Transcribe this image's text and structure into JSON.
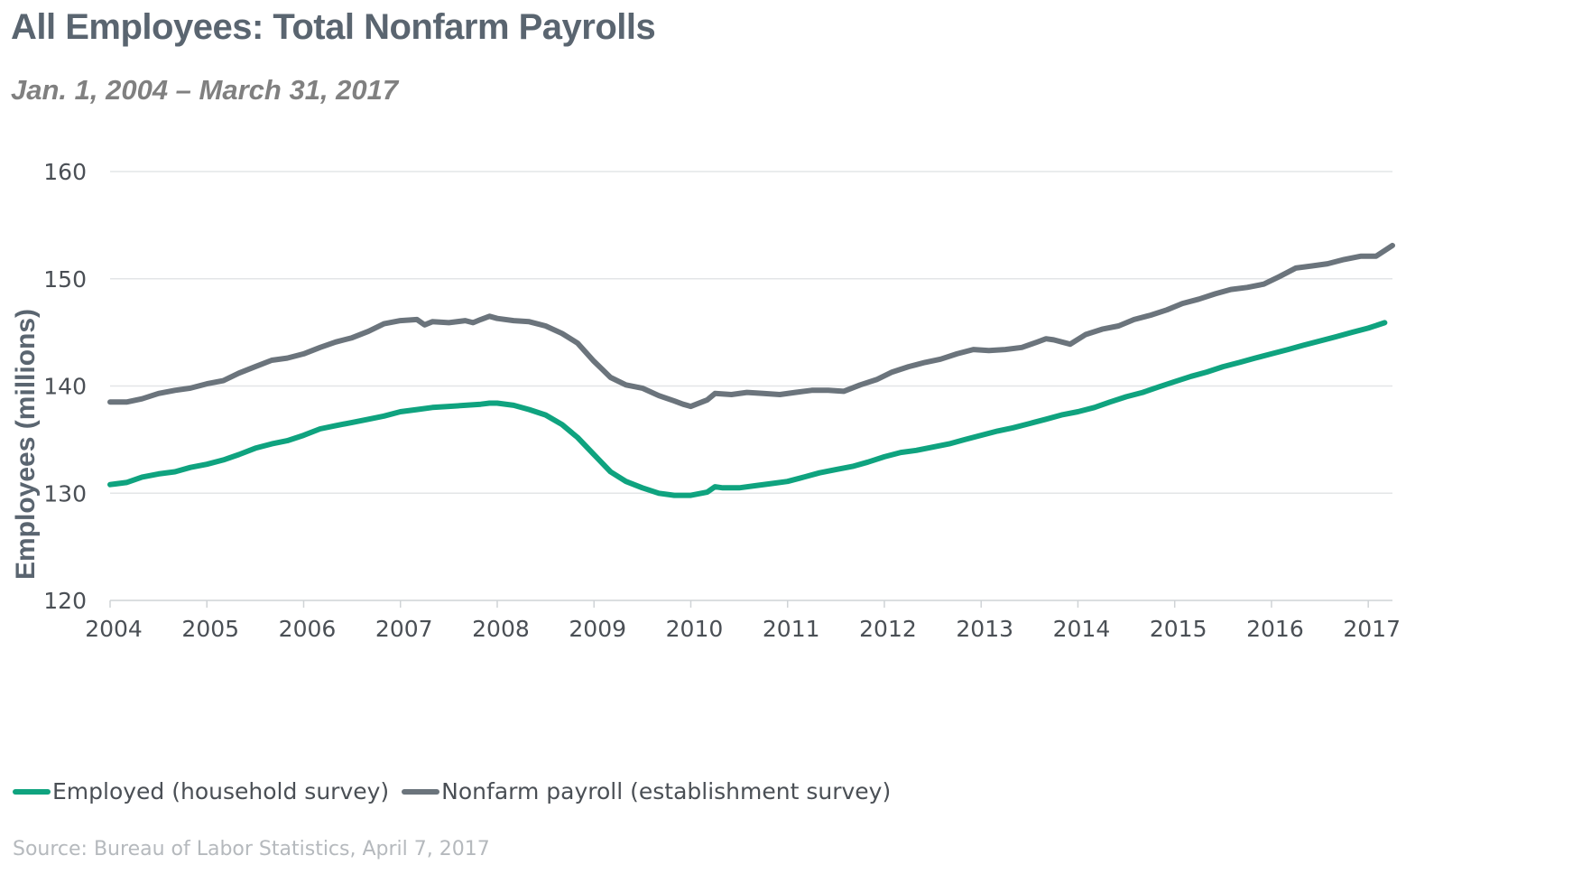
{
  "title": "All Employees: Total Nonfarm Payrolls",
  "subtitle": "Jan. 1, 2004 – March 31, 2017",
  "source": "Source: Bureau of Labor Statistics, April 7, 2017",
  "chart_data": {
    "type": "line",
    "ylabel": "Employees (millions)",
    "xlabel": "",
    "ylim": [
      120,
      160
    ],
    "yticks": [
      "120",
      "130",
      "140",
      "150",
      "160"
    ],
    "xlim": [
      2004.0,
      2017.25
    ],
    "xticks": [
      "2004",
      "2005",
      "2006",
      "2007",
      "2008",
      "2009",
      "2010",
      "2011",
      "2012",
      "2013",
      "2014",
      "2015",
      "2016",
      "2017"
    ],
    "grid": true,
    "legend_position": "bottom",
    "series": [
      {
        "name": "Employed (household survey)",
        "color": "#0fa37f",
        "x": [
          2004.0,
          2004.17,
          2004.33,
          2004.5,
          2004.67,
          2004.83,
          2005.0,
          2005.17,
          2005.33,
          2005.5,
          2005.67,
          2005.83,
          2006.0,
          2006.17,
          2006.33,
          2006.5,
          2006.67,
          2006.83,
          2007.0,
          2007.17,
          2007.33,
          2007.5,
          2007.67,
          2007.83,
          2007.92,
          2008.0,
          2008.17,
          2008.33,
          2008.5,
          2008.67,
          2008.83,
          2009.0,
          2009.17,
          2009.33,
          2009.5,
          2009.67,
          2009.83,
          2010.0,
          2010.17,
          2010.25,
          2010.33,
          2010.42,
          2010.5,
          2010.67,
          2010.83,
          2011.0,
          2011.17,
          2011.33,
          2011.5,
          2011.67,
          2011.83,
          2012.0,
          2012.17,
          2012.33,
          2012.5,
          2012.67,
          2012.83,
          2013.0,
          2013.17,
          2013.33,
          2013.5,
          2013.67,
          2013.83,
          2014.0,
          2014.17,
          2014.33,
          2014.5,
          2014.67,
          2014.83,
          2015.0,
          2015.17,
          2015.33,
          2015.5,
          2015.67,
          2015.83,
          2016.0,
          2016.17,
          2016.33,
          2016.5,
          2016.67,
          2016.83,
          2017.0,
          2017.17
        ],
        "values": [
          130.8,
          131.0,
          131.5,
          131.8,
          132.0,
          132.4,
          132.7,
          133.1,
          133.6,
          134.2,
          134.6,
          134.9,
          135.4,
          136.0,
          136.3,
          136.6,
          136.9,
          137.2,
          137.6,
          137.8,
          138.0,
          138.1,
          138.2,
          138.3,
          138.4,
          138.4,
          138.2,
          137.8,
          137.3,
          136.4,
          135.2,
          133.6,
          132.0,
          131.1,
          130.5,
          130.0,
          129.8,
          129.8,
          130.1,
          130.6,
          130.5,
          130.5,
          130.5,
          130.7,
          130.9,
          131.1,
          131.5,
          131.9,
          132.2,
          132.5,
          132.9,
          133.4,
          133.8,
          134.0,
          134.3,
          134.6,
          135.0,
          135.4,
          135.8,
          136.1,
          136.5,
          136.9,
          137.3,
          137.6,
          138.0,
          138.5,
          139.0,
          139.4,
          139.9,
          140.4,
          140.9,
          141.3,
          141.8,
          142.2,
          142.6,
          143.0,
          143.4,
          143.8,
          144.2,
          144.6,
          145.0,
          145.4,
          145.9
        ]
      },
      {
        "name": "Nonfarm payroll (establishment survey)",
        "color": "#6b747c",
        "x": [
          2004.0,
          2004.17,
          2004.33,
          2004.5,
          2004.67,
          2004.83,
          2005.0,
          2005.17,
          2005.33,
          2005.5,
          2005.67,
          2005.83,
          2006.0,
          2006.17,
          2006.33,
          2006.5,
          2006.67,
          2006.83,
          2007.0,
          2007.17,
          2007.25,
          2007.33,
          2007.5,
          2007.67,
          2007.75,
          2007.83,
          2007.92,
          2008.0,
          2008.17,
          2008.33,
          2008.5,
          2008.67,
          2008.83,
          2009.0,
          2009.08,
          2009.17,
          2009.33,
          2009.5,
          2009.67,
          2009.83,
          2009.92,
          2010.0,
          2010.17,
          2010.25,
          2010.42,
          2010.58,
          2010.75,
          2010.92,
          2011.08,
          2011.25,
          2011.42,
          2011.58,
          2011.75,
          2011.92,
          2012.08,
          2012.25,
          2012.42,
          2012.58,
          2012.75,
          2012.92,
          2013.08,
          2013.25,
          2013.42,
          2013.58,
          2013.67,
          2013.75,
          2013.92,
          2014.08,
          2014.25,
          2014.42,
          2014.58,
          2014.75,
          2014.92,
          2015.08,
          2015.25,
          2015.42,
          2015.58,
          2015.75,
          2015.92,
          2016.08,
          2016.25,
          2016.42,
          2016.58,
          2016.75,
          2016.92,
          2017.08,
          2017.25
        ],
        "values": [
          138.5,
          138.5,
          138.8,
          139.3,
          139.6,
          139.8,
          140.2,
          140.5,
          141.2,
          141.8,
          142.4,
          142.6,
          143.0,
          143.6,
          144.1,
          144.5,
          145.1,
          145.8,
          146.1,
          146.2,
          145.7,
          146.0,
          145.9,
          146.1,
          145.9,
          146.2,
          146.5,
          146.3,
          146.1,
          146.0,
          145.6,
          144.9,
          144.0,
          142.3,
          141.6,
          140.8,
          140.1,
          139.8,
          139.1,
          138.6,
          138.3,
          138.1,
          138.7,
          139.3,
          139.2,
          139.4,
          139.3,
          139.2,
          139.4,
          139.6,
          139.6,
          139.5,
          140.1,
          140.6,
          141.3,
          141.8,
          142.2,
          142.5,
          143.0,
          143.4,
          143.3,
          143.4,
          143.6,
          144.1,
          144.4,
          144.3,
          143.9,
          144.8,
          145.3,
          145.6,
          146.2,
          146.6,
          147.1,
          147.7,
          148.1,
          148.6,
          149.0,
          149.2,
          149.5,
          150.2,
          151.0,
          151.2,
          151.4,
          151.8,
          152.1,
          152.1,
          153.1
        ]
      }
    ]
  }
}
